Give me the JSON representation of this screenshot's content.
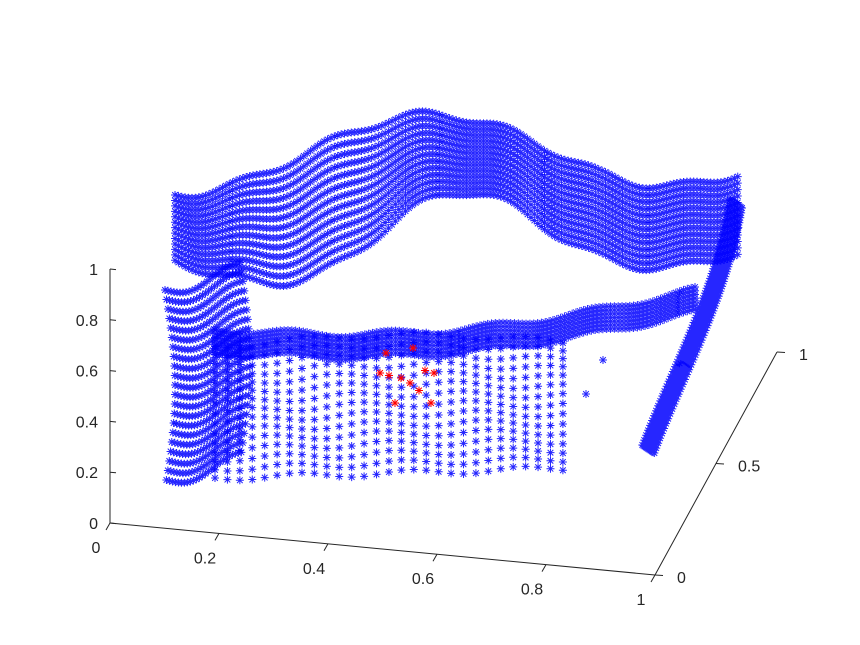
{
  "chart_data": {
    "type": "scatter3d",
    "title": "",
    "xlabel": "",
    "ylabel": "",
    "zlabel": "",
    "xlim": [
      0,
      1
    ],
    "ylim": [
      0,
      1
    ],
    "zlim": [
      0,
      1
    ],
    "grid": false,
    "legend": "none",
    "axes": {
      "x": {
        "ticks": [
          0,
          0.2,
          0.4,
          0.6,
          0.8,
          1
        ],
        "labels": [
          "0",
          "0.2",
          "0.4",
          "0.6",
          "0.8",
          "1"
        ]
      },
      "y": {
        "ticks": [
          0,
          0.5,
          1
        ],
        "labels": [
          "0",
          "0.5",
          "1"
        ]
      },
      "z": {
        "ticks": [
          0,
          0.2,
          0.4,
          0.6,
          0.8,
          1
        ],
        "labels": [
          "0",
          "0.2",
          "0.4",
          "0.6",
          "0.8",
          "1"
        ]
      }
    },
    "series": [
      {
        "marker": "asterisk",
        "color": "#0000ff",
        "description_points": "dense point cloud forming a curved surface"
      },
      {
        "marker": "asterisk",
        "color": "#ff0000",
        "points": [
          {
            "x": 0.45,
            "y": 0.9,
            "z": 0.62
          },
          {
            "x": 0.48,
            "y": 0.9,
            "z": 0.61
          },
          {
            "x": 0.52,
            "y": 0.88,
            "z": 0.6
          },
          {
            "x": 0.55,
            "y": 0.88,
            "z": 0.58
          },
          {
            "x": 0.6,
            "y": 0.85,
            "z": 0.63
          },
          {
            "x": 0.63,
            "y": 0.85,
            "z": 0.62
          },
          {
            "x": 0.58,
            "y": 0.86,
            "z": 0.55
          },
          {
            "x": 0.5,
            "y": 0.9,
            "z": 0.5
          },
          {
            "x": 0.62,
            "y": 0.84,
            "z": 0.5
          },
          {
            "x": 0.47,
            "y": 0.92,
            "z": 0.7
          },
          {
            "x": 0.56,
            "y": 0.9,
            "z": 0.72
          }
        ]
      }
    ]
  }
}
